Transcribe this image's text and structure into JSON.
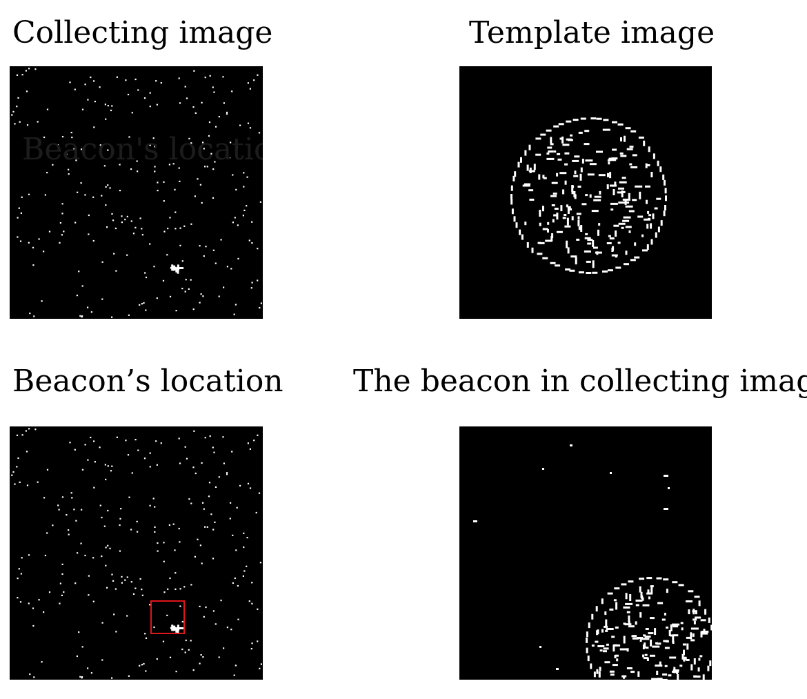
{
  "panels": {
    "collecting": {
      "title": "Collecting image",
      "ghost_label": "Beacon's location"
    },
    "template": {
      "title": "Template image"
    },
    "location": {
      "title": "Beacon’s location"
    },
    "beacon": {
      "title": "The beacon in collecting image"
    }
  },
  "colors": {
    "background": "#ffffff",
    "image_background": "#000000",
    "dots": "#ffffff",
    "highlight_box": "#e0141a"
  }
}
